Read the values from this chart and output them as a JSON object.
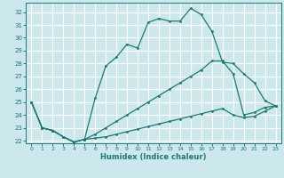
{
  "xlabel": "Humidex (Indice chaleur)",
  "bg_color": "#cde8ed",
  "grid_color": "#b0d8e0",
  "line_color": "#1a7a6e",
  "xlim": [
    -0.5,
    23.5
  ],
  "ylim": [
    21.8,
    32.7
  ],
  "xticks": [
    0,
    1,
    2,
    3,
    4,
    5,
    6,
    7,
    8,
    9,
    10,
    11,
    12,
    13,
    14,
    15,
    16,
    17,
    18,
    19,
    20,
    21,
    22,
    23
  ],
  "yticks": [
    22,
    23,
    24,
    25,
    26,
    27,
    28,
    29,
    30,
    31,
    32
  ],
  "line1_x": [
    0,
    1,
    2,
    3,
    4,
    5,
    6,
    7,
    8,
    9,
    10,
    11,
    12,
    13,
    14,
    15,
    16,
    17,
    18,
    19,
    20,
    21,
    22,
    23
  ],
  "line1_y": [
    25.0,
    23.0,
    22.8,
    22.3,
    21.9,
    22.1,
    25.3,
    27.8,
    28.5,
    29.5,
    29.2,
    31.2,
    31.5,
    31.3,
    31.3,
    32.3,
    31.8,
    30.5,
    28.1,
    28.0,
    27.2,
    26.5,
    25.1,
    24.7
  ],
  "line2_x": [
    0,
    1,
    2,
    3,
    4,
    5,
    6,
    7,
    8,
    9,
    10,
    11,
    12,
    13,
    14,
    15,
    16,
    17,
    18,
    19,
    20,
    21,
    22,
    23
  ],
  "line2_y": [
    25.0,
    23.0,
    22.8,
    22.3,
    21.9,
    22.1,
    22.5,
    23.0,
    23.5,
    24.0,
    24.5,
    25.0,
    25.5,
    26.0,
    26.5,
    27.0,
    27.5,
    28.2,
    28.2,
    27.2,
    24.0,
    24.2,
    24.6,
    24.7
  ],
  "line3_x": [
    0,
    1,
    2,
    3,
    4,
    5,
    6,
    7,
    8,
    9,
    10,
    11,
    12,
    13,
    14,
    15,
    16,
    17,
    18,
    19,
    20,
    21,
    22,
    23
  ],
  "line3_y": [
    25.0,
    23.0,
    22.8,
    22.3,
    21.9,
    22.1,
    22.2,
    22.3,
    22.5,
    22.7,
    22.9,
    23.1,
    23.3,
    23.5,
    23.7,
    23.9,
    24.1,
    24.3,
    24.5,
    24.0,
    23.8,
    23.9,
    24.3,
    24.7
  ]
}
